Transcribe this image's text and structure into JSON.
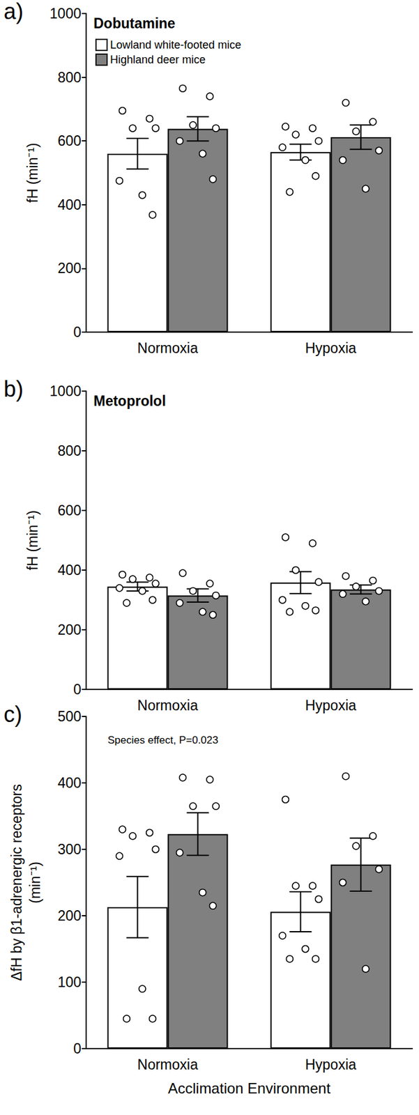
{
  "chart_data": [
    {
      "type": "bar",
      "panel": "a)",
      "title": "Dobutamine",
      "categories": [
        "Normoxia",
        "Hypoxia"
      ],
      "series": [
        {
          "name": "Lowland white-footed mice",
          "color": "#ffffff",
          "values": [
            560,
            565
          ],
          "errors": [
            48,
            25
          ],
          "points": [
            [
              695,
              670,
              640,
              640,
              475,
              430,
              368
            ],
            [
              645,
              640,
              620,
              600,
              580,
              540,
              490,
              440
            ]
          ]
        },
        {
          "name": "Highland deer mice",
          "color": "#808080",
          "values": [
            638,
            612
          ],
          "errors": [
            38,
            38
          ],
          "points": [
            [
              765,
              740,
              650,
              640,
              600,
              560,
              480
            ],
            [
              720,
              660,
              630,
              570,
              540,
              450
            ]
          ]
        }
      ],
      "ylabel": "fH (min⁻¹)",
      "ylim": [
        0,
        1000
      ],
      "yticks": [
        0,
        200,
        400,
        600,
        800,
        1000
      ],
      "grid": false,
      "legend": "upper left"
    },
    {
      "type": "bar",
      "panel": "b)",
      "title": "Metoprolol",
      "categories": [
        "Normoxia",
        "Hypoxia"
      ],
      "series": [
        {
          "name": "Lowland white-footed mice",
          "color": "#ffffff",
          "values": [
            345,
            358
          ],
          "errors": [
            15,
            37
          ],
          "points": [
            [
              385,
              375,
              370,
              355,
              340,
              330,
              300,
              290
            ],
            [
              510,
              490,
              400,
              360,
              300,
              280,
              265,
              260
            ]
          ]
        },
        {
          "name": "Highland deer mice",
          "color": "#808080",
          "values": [
            315,
            335
          ],
          "errors": [
            22,
            15
          ],
          "points": [
            [
              390,
              355,
              330,
              315,
              290,
              260,
              250
            ],
            [
              380,
              365,
              345,
              330,
              320,
              295
            ]
          ]
        }
      ],
      "ylabel": "fH (min⁻¹)",
      "ylim": [
        0,
        1000
      ],
      "yticks": [
        0,
        200,
        400,
        600,
        800,
        1000
      ],
      "grid": false
    },
    {
      "type": "bar",
      "panel": "c)",
      "categories": [
        "Normoxia",
        "Hypoxia"
      ],
      "series": [
        {
          "name": "Lowland white-footed mice",
          "color": "#ffffff",
          "values": [
            213,
            206
          ],
          "errors": [
            46,
            30
          ],
          "points": [
            [
              330,
              325,
              320,
              300,
              290,
              90,
              45,
              45
            ],
            [
              375,
              245,
              245,
              225,
              170,
              150,
              135,
              135
            ]
          ]
        },
        {
          "name": "Highland deer mice",
          "color": "#808080",
          "values": [
            323,
            277
          ],
          "errors": [
            32,
            40
          ],
          "points": [
            [
              408,
              405,
              365,
              365,
              295,
              235,
              215
            ],
            [
              410,
              320,
              305,
              270,
              250,
              120
            ]
          ]
        }
      ],
      "ylabel": "ΔfH by β1-adrenergic receptors\n(min⁻¹)",
      "xlabel": "Acclimation Environment",
      "annotation": "Species effect, P=0.023",
      "ylim": [
        0,
        500
      ],
      "yticks": [
        0,
        100,
        200,
        300,
        400,
        500
      ],
      "grid": false
    }
  ]
}
